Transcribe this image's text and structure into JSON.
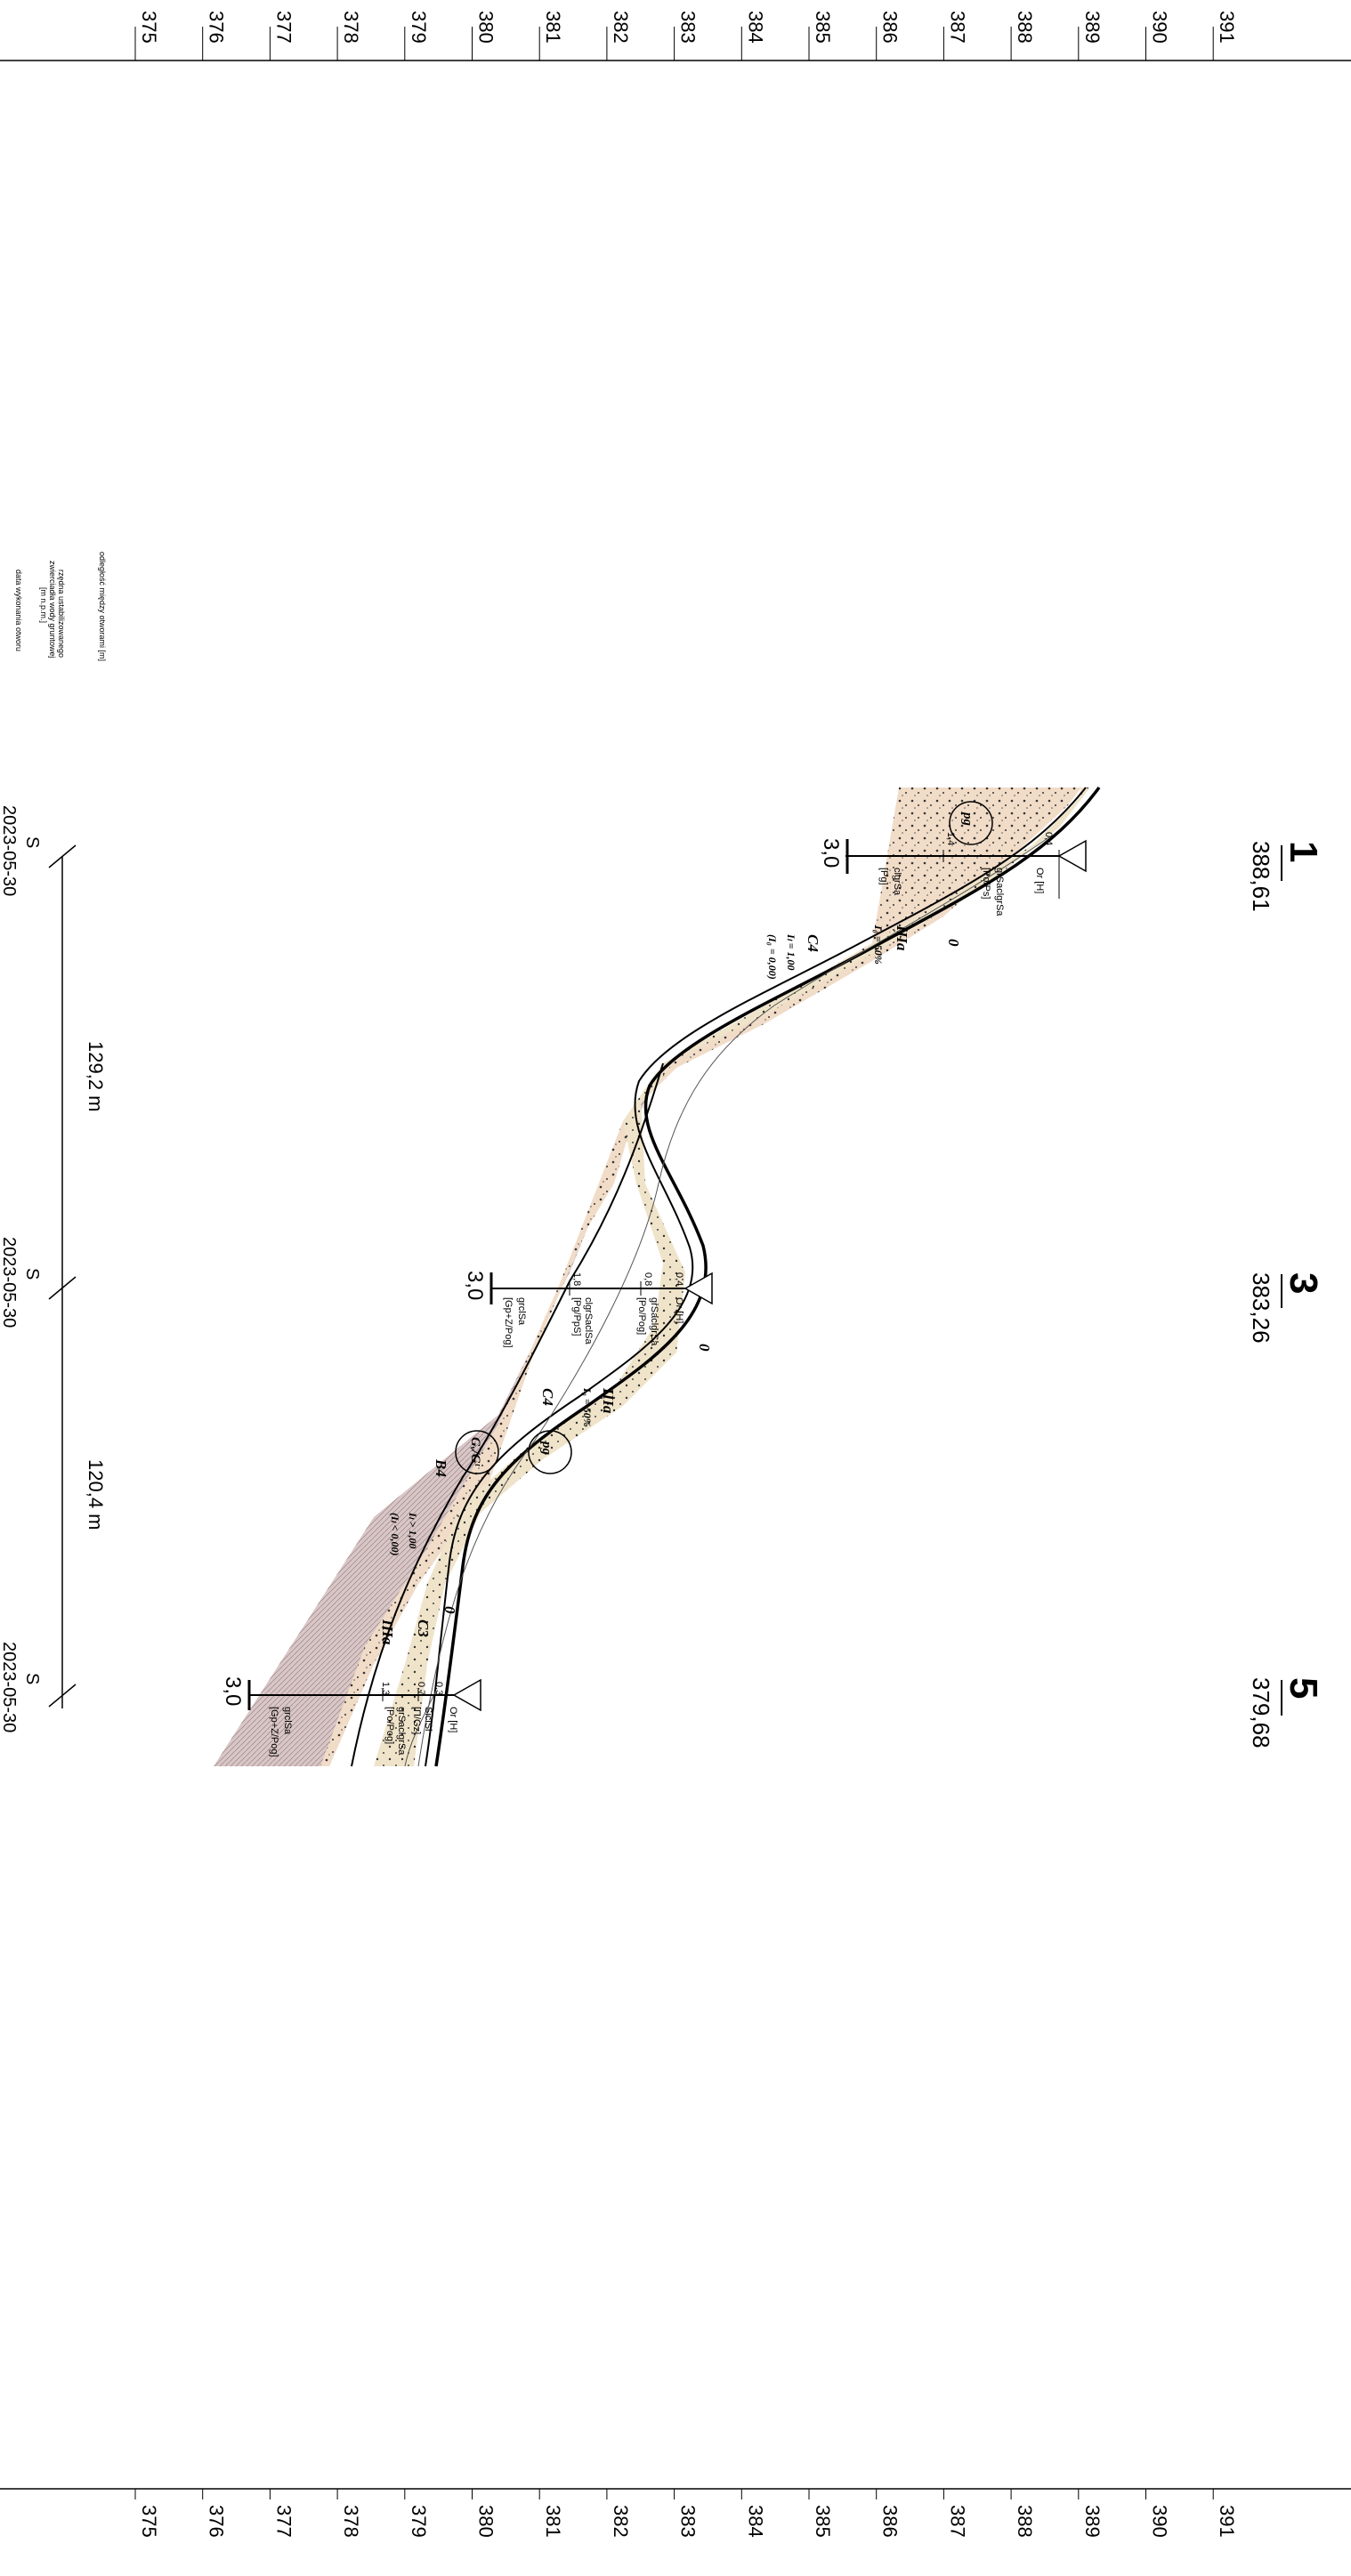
{
  "scale": {
    "labels": [
      "375",
      "376",
      "377",
      "378",
      "379",
      "380",
      "381",
      "382",
      "383",
      "384",
      "385",
      "386",
      "387",
      "388",
      "389",
      "390",
      "391"
    ]
  },
  "legend": {
    "line1": "odległość między otworami [m]",
    "line2": "rzędna ustabilizowanego",
    "line3": "zwierciadła wody gruntowej",
    "line4": "[m n.p.m.]",
    "line5": "data wykonania otworu"
  },
  "boreholes": [
    {
      "number": "1",
      "elevation": "388,61",
      "date": "2023-05-30",
      "s": "S",
      "depth": "3,0",
      "soils": [
        "Or [H]",
        "grSaclgrSa",
        "[Po/Ps]",
        "clgrSa",
        "[Pg]"
      ],
      "depth_marks": [
        "0,4",
        "1,4"
      ]
    },
    {
      "number": "3",
      "elevation": "383,26",
      "date": "2023-05-30",
      "s": "S",
      "depth": "3,0",
      "soils": [
        "Or [H]",
        "grSaclgrSa",
        "[Po/Pog]",
        "clgrSaclSa",
        "[Pg/PpS]",
        "grclSa",
        "[Gp+Z/Pog]"
      ],
      "depth_marks": [
        "0,4",
        "0,8",
        "1,8"
      ]
    },
    {
      "number": "5",
      "elevation": "379,68",
      "date": "2023-05-30",
      "s": "S",
      "depth": "3,0",
      "soils": [
        "Or [H]",
        "SiclSl",
        "[Π/Gz]",
        "grSaclgrSa",
        "[Po/Pog]",
        "grclSa",
        "[Gp+Z/Pog]"
      ],
      "depth_marks": [
        "0,3",
        "0,7",
        "1,3"
      ]
    }
  ],
  "distances": [
    "129,2 m",
    "120,4 m"
  ],
  "layers": {
    "l0": "0",
    "iiia": "IIIa",
    "iiia_note": "I₀ = 50%",
    "c4": "C4",
    "c4_il": "Iₗ = 1,00",
    "c4_note": "(I₀ = 0,00)",
    "iiia2": "IIIa",
    "iiia2_note": "I₀ = 50%",
    "c4b": "C4",
    "b4": "B4",
    "b4_il": "Iₗ > 1,00",
    "b4_note": "(Iₗ < 0,00)",
    "c3": "C3",
    "iiia3": "IIIa",
    "circ1": "pg",
    "circ2": "pg",
    "circ3": "Gᵥ/Gᵗ"
  },
  "colors": {
    "sand": "#f3dcc6",
    "sand2": "#efe2c8",
    "clay": "#d7c3c3",
    "line": "#000000"
  }
}
